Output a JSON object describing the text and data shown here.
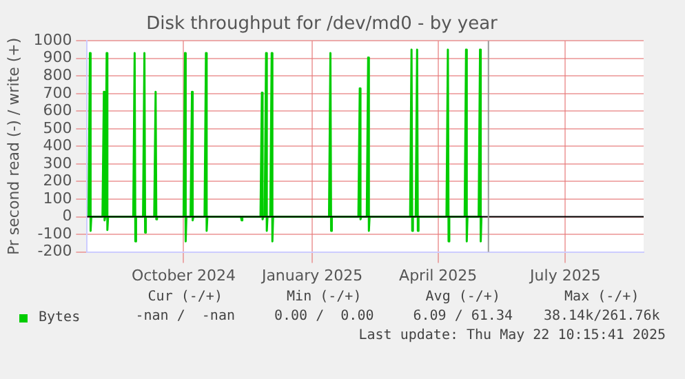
{
  "chart_data": {
    "type": "line",
    "title": "Disk throughput for /dev/md0 - by year",
    "ylabel": "Pr second read (-) / write (+)",
    "x": [
      "2024-07-25",
      "2024-07-26",
      "2024-07-26T12:00",
      "2024-07-27",
      "2024-08-04",
      "2024-08-05",
      "2024-08-05T12:00",
      "2024-08-06",
      "2024-08-07",
      "2024-08-07T12:00",
      "2024-08-08",
      "2024-08-26",
      "2024-08-27",
      "2024-08-27T12:00",
      "2024-08-28",
      "2024-09-02",
      "2024-09-03",
      "2024-09-03T12:00",
      "2024-09-04",
      "2024-09-10",
      "2024-09-11",
      "2024-09-11T12:00",
      "2024-09-12",
      "2024-10-01",
      "2024-10-02",
      "2024-10-02T12:00",
      "2024-10-03",
      "2024-10-06",
      "2024-10-07",
      "2024-10-07T12:00",
      "2024-10-08",
      "2024-10-16",
      "2024-10-17",
      "2024-10-17T12:00",
      "2024-10-18",
      "2024-11-10",
      "2024-11-11",
      "2024-11-11T12:00",
      "2024-11-12",
      "2024-11-25",
      "2024-11-26",
      "2024-11-26T12:00",
      "2024-11-27",
      "2024-11-28",
      "2024-11-29",
      "2024-11-29T12:00",
      "2024-11-30",
      "2024-12-02",
      "2024-12-03",
      "2024-12-03T12:00",
      "2024-12-04",
      "2025-01-13",
      "2025-01-14",
      "2025-01-14T12:00",
      "2025-01-15",
      "2025-02-03",
      "2025-02-04",
      "2025-02-04T12:00",
      "2025-02-05",
      "2025-02-09",
      "2025-02-10",
      "2025-02-10T12:00",
      "2025-02-11",
      "2025-03-12",
      "2025-03-13",
      "2025-03-13T12:00",
      "2025-03-14",
      "2025-03-16",
      "2025-03-17",
      "2025-03-17T12:00",
      "2025-03-18",
      "2025-04-07",
      "2025-04-08",
      "2025-04-08T12:00",
      "2025-04-09",
      "2025-04-20",
      "2025-04-21",
      "2025-04-21T12:00",
      "2025-04-22",
      "2025-04-30",
      "2025-05-01",
      "2025-05-01T12:00",
      "2025-05-02"
    ],
    "series": [
      {
        "name": "Bytes",
        "color": "#00cc00",
        "values": [
          0,
          930,
          -80,
          0,
          0,
          710,
          -20,
          0,
          930,
          -75,
          0,
          0,
          930,
          -140,
          0,
          0,
          930,
          -90,
          0,
          0,
          710,
          -15,
          0,
          0,
          930,
          -140,
          0,
          0,
          710,
          -20,
          0,
          0,
          930,
          -80,
          0,
          0,
          0,
          -20,
          0,
          0,
          705,
          -15,
          0,
          0,
          930,
          -80,
          0,
          0,
          930,
          -140,
          0,
          0,
          930,
          -80,
          0,
          0,
          730,
          -15,
          0,
          0,
          905,
          -80,
          0,
          0,
          950,
          -80,
          0,
          0,
          950,
          -80,
          0,
          0,
          950,
          -140,
          0,
          0,
          950,
          -140,
          0,
          0,
          950,
          -140,
          0
        ]
      }
    ],
    "xlim": [
      "2024-07-24",
      "2025-08-26"
    ],
    "xticks": [
      {
        "value": "2024-10-01",
        "label": "October 2024"
      },
      {
        "value": "2025-01-01",
        "label": "January 2025"
      },
      {
        "value": "2025-04-01",
        "label": "April 2025"
      },
      {
        "value": "2025-07-01",
        "label": "July 2025"
      }
    ],
    "ylim": [
      -200,
      1000
    ],
    "yticks": [
      -200,
      -100,
      0,
      100,
      200,
      300,
      400,
      500,
      600,
      700,
      800,
      900,
      1000
    ],
    "grid": true,
    "legend": "bottom",
    "marker": "none",
    "line_style": "solid",
    "ref_lines": [
      {
        "axis": "y",
        "value": 0,
        "color": "#000000"
      },
      {
        "axis": "x",
        "value": "2025-05-07",
        "color": "#999999"
      }
    ],
    "annotations": [
      "Cur (-/+)",
      "Min (-/+)",
      "Avg (-/+)",
      "Max (-/+)",
      "-nan /  -nan",
      "0.00 /  0.00",
      "6.09 / 61.34",
      "38.14k/261.76k",
      "Last update: Thu May 22 10:15:41 2025"
    ]
  }
}
